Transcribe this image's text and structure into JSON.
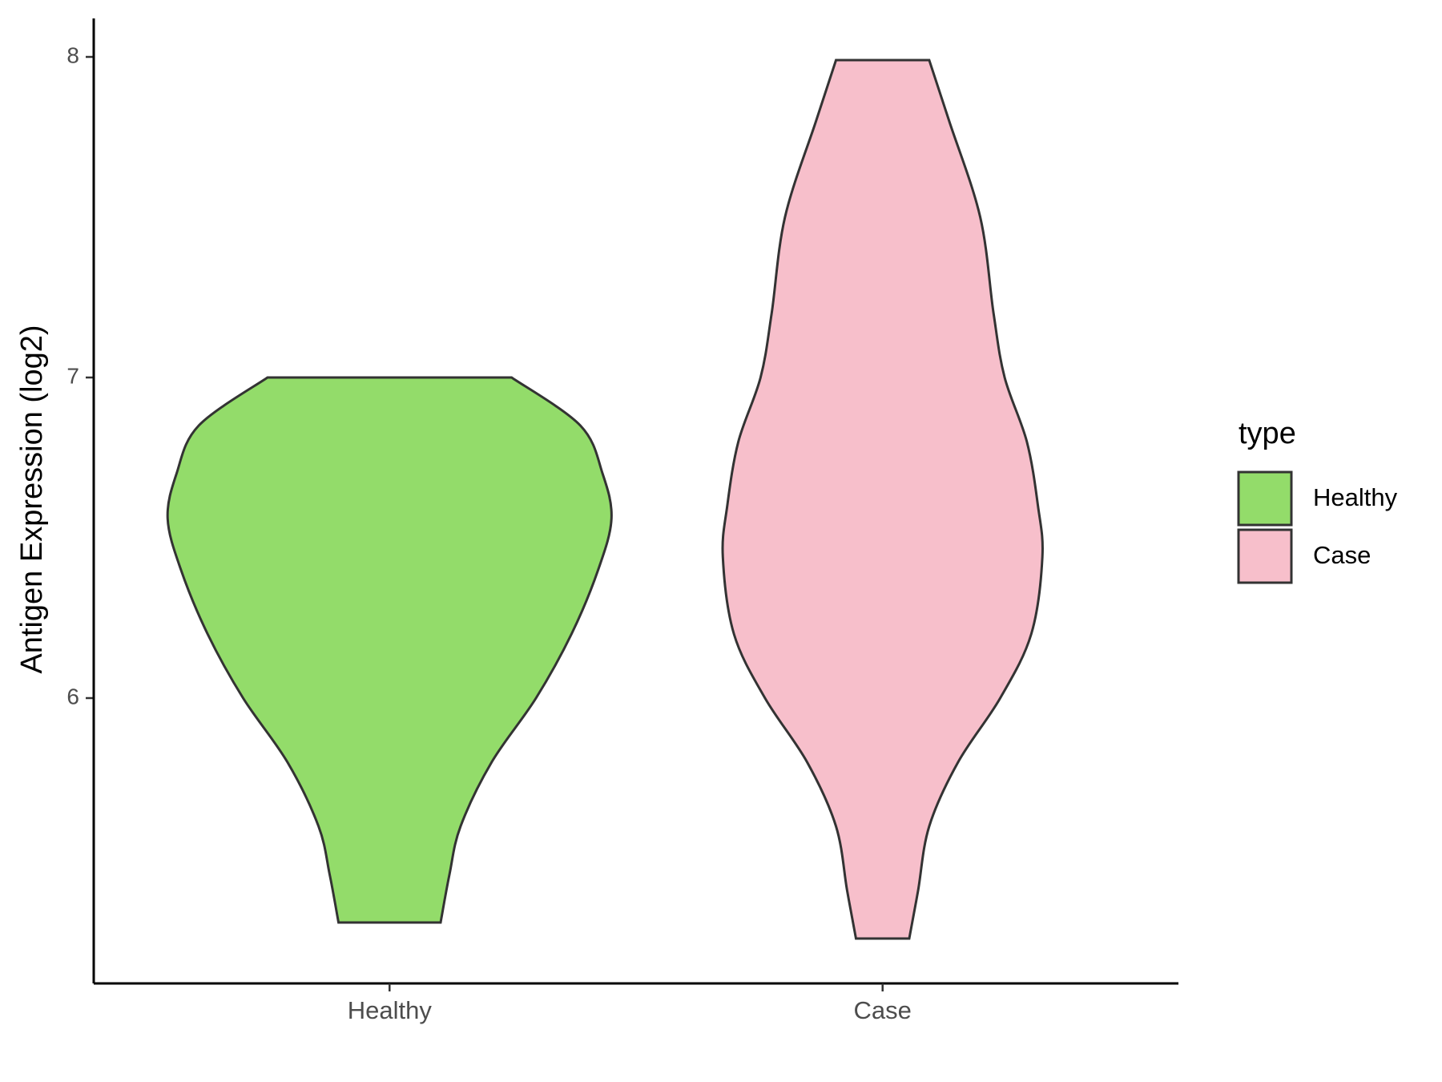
{
  "chart_data": {
    "type": "violin",
    "y_label": "Antigen Expression (log2)",
    "categories": [
      "Healthy",
      "Case"
    ],
    "legend_title": "type",
    "legend_position": "right",
    "ylim": [
      5.11,
      8.12
    ],
    "yticks": [
      6,
      7,
      8
    ],
    "series": [
      {
        "name": "Healthy",
        "color": "#93dc6a",
        "y": [
          7.0,
          6.85,
          6.7,
          6.56,
          6.4,
          6.2,
          6.0,
          5.8,
          5.6,
          5.45,
          5.3
        ],
        "width": [
          0.55,
          0.86,
          0.96,
          1.0,
          0.94,
          0.82,
          0.66,
          0.46,
          0.32,
          0.27,
          0.23
        ]
      },
      {
        "name": "Case",
        "color": "#f7bfcb",
        "y": [
          7.99,
          7.8,
          7.5,
          7.2,
          7.0,
          6.8,
          6.6,
          6.44,
          6.2,
          6.0,
          5.8,
          5.6,
          5.4,
          5.25
        ],
        "width": [
          0.21,
          0.3,
          0.44,
          0.5,
          0.55,
          0.65,
          0.7,
          0.72,
          0.67,
          0.53,
          0.34,
          0.21,
          0.16,
          0.12
        ]
      }
    ]
  }
}
